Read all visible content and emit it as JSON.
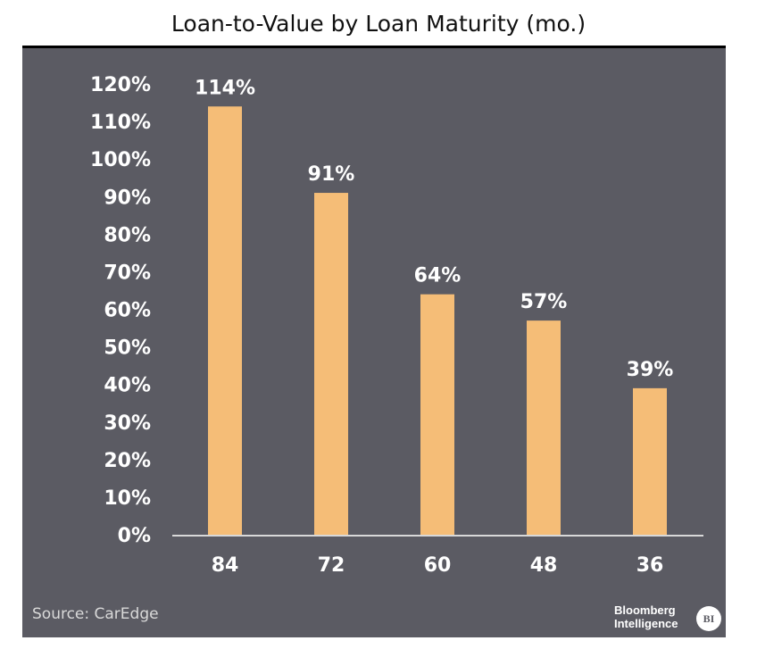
{
  "chart_data": {
    "type": "bar",
    "title": "Loan-to-Value by Loan Maturity (mo.)",
    "xlabel": "",
    "ylabel": "",
    "categories": [
      "84",
      "72",
      "60",
      "48",
      "36"
    ],
    "values": [
      114,
      91,
      64,
      57,
      39
    ],
    "data_labels": [
      "114%",
      "91%",
      "64%",
      "57%",
      "39%"
    ],
    "y_ticks": [
      "0%",
      "10%",
      "20%",
      "30%",
      "40%",
      "50%",
      "60%",
      "70%",
      "80%",
      "90%",
      "100%",
      "110%",
      "120%"
    ],
    "ylim": [
      0,
      120
    ],
    "grid": false,
    "legend": "none",
    "colors": {
      "bar": "#f5bd77",
      "background": "#5b5b63",
      "axis": "#d9d9d9",
      "text": "#ffffff"
    }
  },
  "footer": {
    "source": "Source: CarEdge",
    "brand_line1": "Bloomberg",
    "brand_line2": "Intelligence",
    "badge": "BI"
  }
}
